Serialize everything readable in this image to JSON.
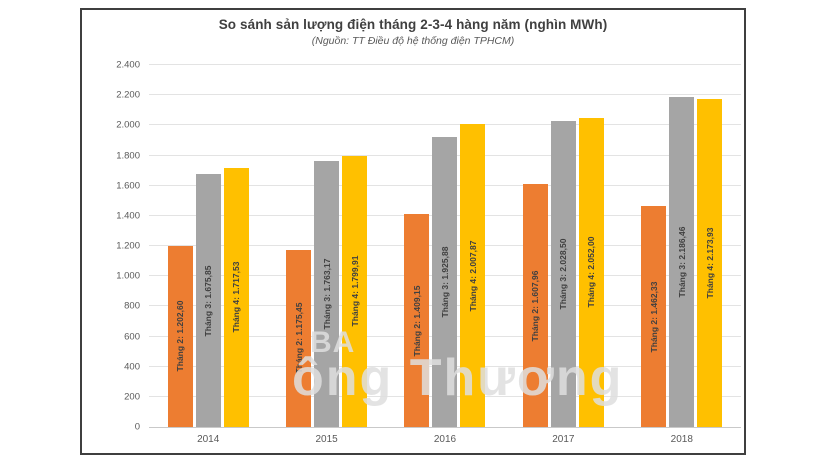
{
  "chart": {
    "title": "So sánh sản lượng điện tháng 2-3-4 hàng năm (nghìn MWh)",
    "subtitle": "(Nguồn: TT Điều độ hệ thống điện TPHCM)",
    "border_color": "#3f3f3f",
    "watermark_line1": "BA",
    "watermark_line2": "ông Thương"
  },
  "chart_data": {
    "type": "bar",
    "title": "So sánh sản lượng điện tháng 2-3-4 hàng năm (nghìn MWh)",
    "subtitle": "(Nguồn: TT Điều độ hệ thống điện TPHCM)",
    "categories": [
      "2014",
      "2015",
      "2016",
      "2017",
      "2018"
    ],
    "series": [
      {
        "name": "Tháng 2",
        "color": "#ED7D31",
        "values": [
          1202.6,
          1175.45,
          1409.15,
          1607.96,
          1462.33
        ],
        "bar_labels": [
          "Tháng 2: 1.202,60",
          "Tháng 2: 1.175,45",
          "Tháng 2: 1.409,15",
          "Tháng 2: 1.607,96",
          "Tháng 2: 1.462,33"
        ]
      },
      {
        "name": "Tháng 3",
        "color": "#A5A5A5",
        "values": [
          1675.85,
          1763.17,
          1925.88,
          2028.5,
          2186.46
        ],
        "bar_labels": [
          "Tháng 3: 1.675,85",
          "Tháng 3: 1.763,17",
          "Tháng 3: 1.925,88",
          "Tháng 3: 2.028,50",
          "Tháng 3: 2.186,46"
        ]
      },
      {
        "name": "Tháng 4",
        "color": "#FFC000",
        "values": [
          1717.53,
          1799.91,
          2007.87,
          2052.0,
          2173.93
        ],
        "bar_labels": [
          "Tháng 4: 1.717,53",
          "Tháng 4: 1.799,91",
          "Tháng 4: 2.007,87",
          "Tháng 4: 2.052,00",
          "Tháng 4: 2.173,93"
        ]
      }
    ],
    "ylim": [
      0,
      2400
    ],
    "ytick_step": 200,
    "ytick_labels": [
      "0",
      "200",
      "400",
      "600",
      "800",
      "1.000",
      "1.200",
      "1.400",
      "1.600",
      "1.800",
      "2.000",
      "2.200",
      "2.400"
    ],
    "grid": true,
    "legend": "none",
    "bar_label_color": "#404040"
  }
}
